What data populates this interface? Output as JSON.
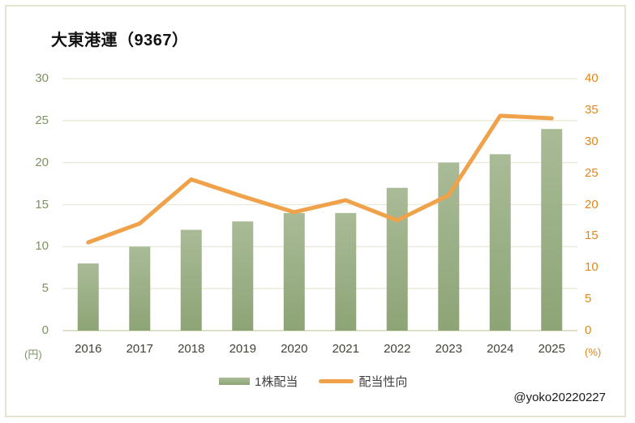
{
  "title": "大東港運（9367）",
  "watermark": "@yoko20220227",
  "chart_data": {
    "type": "bar",
    "subtype": "bar+line combo",
    "categories": [
      "2016",
      "2017",
      "2018",
      "2019",
      "2020",
      "2021",
      "2022",
      "2023",
      "2024",
      "2025"
    ],
    "series": [
      {
        "name": "1株配当",
        "type": "bar",
        "axis": "left",
        "unit": "円",
        "color_top": "#A9BB97",
        "color_bottom": "#8DA476",
        "values": [
          8,
          10,
          12,
          13,
          14,
          14,
          17,
          20,
          21,
          24
        ]
      },
      {
        "name": "配当性向",
        "type": "line",
        "axis": "right",
        "unit": "%",
        "color": "#F0A24B",
        "values": [
          14,
          17,
          24,
          21.3,
          18.8,
          20.7,
          17.5,
          21.5,
          34.1,
          33.7
        ]
      }
    ],
    "left_axis": {
      "label": "(円)",
      "min": 0,
      "max": 30,
      "step": 5,
      "text_color": "#7D9460"
    },
    "right_axis": {
      "label": "(%)",
      "min": 0,
      "max": 40,
      "step": 5,
      "text_color": "#E08619"
    },
    "grid": true,
    "gridline_color": "#EAEBDC",
    "baseline_color": "#DDE0C6",
    "legend_position": "bottom"
  }
}
